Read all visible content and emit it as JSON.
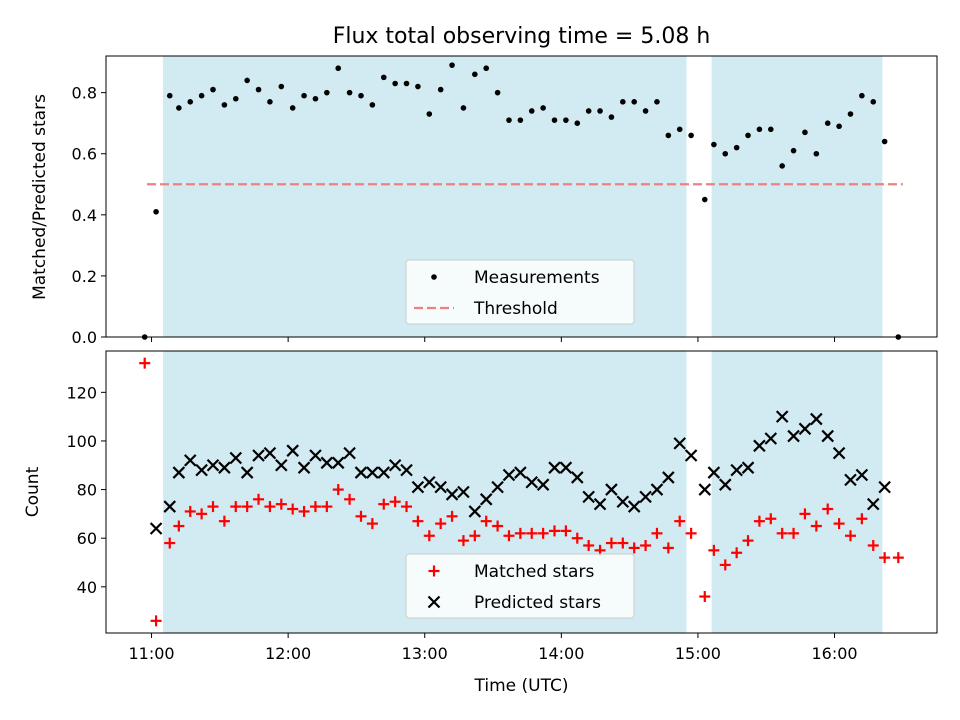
{
  "chart_data": [
    {
      "type": "scatter",
      "title": "Flux total observing time = 5.08 h",
      "xlabel": "",
      "ylabel": "Matched/Predicted stars",
      "xlim": [
        "10:40",
        "16:45"
      ],
      "ylim": [
        0,
        0.92
      ],
      "yticks": [
        0,
        0.2,
        0.4,
        0.6,
        0.8
      ],
      "ytick_labels": [
        "0.0",
        "0.2",
        "0.4",
        "0.6",
        "0.8"
      ],
      "xticks": [
        "11:00",
        "12:00",
        "13:00",
        "14:00",
        "15:00",
        "16:00"
      ],
      "show_xtick_labels": false,
      "shaded_intervals": [
        [
          "11:05",
          "14:55"
        ],
        [
          "15:06",
          "16:21"
        ]
      ],
      "shade_color": "#add8e6",
      "threshold": {
        "label": "Threshold",
        "value": 0.5,
        "x_range": [
          "10:58",
          "16:30"
        ],
        "color": "#f08080"
      },
      "legend": {
        "placement": "lower-center",
        "entries": [
          "Measurements",
          "Threshold"
        ]
      },
      "series": [
        {
          "name": "Measurements",
          "color": "#000000",
          "points": [
            [
              "10:57",
              0.0
            ],
            [
              "11:02",
              0.41
            ],
            [
              "11:08",
              0.79
            ],
            [
              "11:12",
              0.75
            ],
            [
              "11:17",
              0.77
            ],
            [
              "11:22",
              0.79
            ],
            [
              "11:27",
              0.81
            ],
            [
              "11:32",
              0.76
            ],
            [
              "11:37",
              0.78
            ],
            [
              "11:42",
              0.84
            ],
            [
              "11:47",
              0.81
            ],
            [
              "11:52",
              0.77
            ],
            [
              "11:57",
              0.82
            ],
            [
              "12:02",
              0.75
            ],
            [
              "12:07",
              0.79
            ],
            [
              "12:12",
              0.78
            ],
            [
              "12:17",
              0.8
            ],
            [
              "12:22",
              0.88
            ],
            [
              "12:27",
              0.8
            ],
            [
              "12:32",
              0.79
            ],
            [
              "12:37",
              0.76
            ],
            [
              "12:42",
              0.85
            ],
            [
              "12:47",
              0.83
            ],
            [
              "12:52",
              0.83
            ],
            [
              "12:57",
              0.82
            ],
            [
              "13:02",
              0.73
            ],
            [
              "13:07",
              0.81
            ],
            [
              "13:12",
              0.89
            ],
            [
              "13:17",
              0.75
            ],
            [
              "13:22",
              0.86
            ],
            [
              "13:27",
              0.88
            ],
            [
              "13:32",
              0.8
            ],
            [
              "13:37",
              0.71
            ],
            [
              "13:42",
              0.71
            ],
            [
              "13:47",
              0.74
            ],
            [
              "13:52",
              0.75
            ],
            [
              "13:57",
              0.71
            ],
            [
              "14:02",
              0.71
            ],
            [
              "14:07",
              0.7
            ],
            [
              "14:12",
              0.74
            ],
            [
              "14:17",
              0.74
            ],
            [
              "14:22",
              0.72
            ],
            [
              "14:27",
              0.77
            ],
            [
              "14:32",
              0.77
            ],
            [
              "14:37",
              0.74
            ],
            [
              "14:42",
              0.77
            ],
            [
              "14:47",
              0.66
            ],
            [
              "14:52",
              0.68
            ],
            [
              "14:57",
              0.66
            ],
            [
              "15:03",
              0.45
            ],
            [
              "15:07",
              0.63
            ],
            [
              "15:12",
              0.6
            ],
            [
              "15:17",
              0.62
            ],
            [
              "15:22",
              0.66
            ],
            [
              "15:27",
              0.68
            ],
            [
              "15:32",
              0.68
            ],
            [
              "15:37",
              0.56
            ],
            [
              "15:42",
              0.61
            ],
            [
              "15:47",
              0.67
            ],
            [
              "15:52",
              0.6
            ],
            [
              "15:57",
              0.7
            ],
            [
              "16:02",
              0.69
            ],
            [
              "16:07",
              0.73
            ],
            [
              "16:12",
              0.79
            ],
            [
              "16:17",
              0.77
            ],
            [
              "16:22",
              0.64
            ],
            [
              "16:28",
              0.0
            ]
          ]
        }
      ]
    },
    {
      "type": "scatter",
      "title": "",
      "xlabel": "Time (UTC)",
      "ylabel": "Count",
      "xlim": [
        "10:40",
        "16:45"
      ],
      "ylim": [
        21,
        137
      ],
      "yticks": [
        40,
        60,
        80,
        100,
        120
      ],
      "xticks": [
        "11:00",
        "12:00",
        "13:00",
        "14:00",
        "15:00",
        "16:00"
      ],
      "shaded_intervals": [
        [
          "11:05",
          "14:55"
        ],
        [
          "15:06",
          "16:21"
        ]
      ],
      "shade_color": "#add8e6",
      "legend": {
        "placement": "lower-center",
        "entries": [
          "Matched stars",
          "Predicted stars"
        ]
      },
      "series": [
        {
          "name": "Matched stars",
          "marker": "plus",
          "color": "#ff0000",
          "points": [
            [
              "10:57",
              132
            ],
            [
              "11:02",
              26
            ],
            [
              "11:08",
              58
            ],
            [
              "11:12",
              65
            ],
            [
              "11:17",
              71
            ],
            [
              "11:22",
              70
            ],
            [
              "11:27",
              73
            ],
            [
              "11:32",
              67
            ],
            [
              "11:37",
              73
            ],
            [
              "11:42",
              73
            ],
            [
              "11:47",
              76
            ],
            [
              "11:52",
              73
            ],
            [
              "11:57",
              74
            ],
            [
              "12:02",
              72
            ],
            [
              "12:07",
              71
            ],
            [
              "12:12",
              73
            ],
            [
              "12:17",
              73
            ],
            [
              "12:22",
              80
            ],
            [
              "12:27",
              76
            ],
            [
              "12:32",
              69
            ],
            [
              "12:37",
              66
            ],
            [
              "12:42",
              74
            ],
            [
              "12:47",
              75
            ],
            [
              "12:52",
              73
            ],
            [
              "12:57",
              67
            ],
            [
              "13:02",
              61
            ],
            [
              "13:07",
              66
            ],
            [
              "13:12",
              69
            ],
            [
              "13:17",
              59
            ],
            [
              "13:22",
              61
            ],
            [
              "13:27",
              67
            ],
            [
              "13:32",
              65
            ],
            [
              "13:37",
              61
            ],
            [
              "13:42",
              62
            ],
            [
              "13:47",
              62
            ],
            [
              "13:52",
              62
            ],
            [
              "13:57",
              63
            ],
            [
              "14:02",
              63
            ],
            [
              "14:07",
              60
            ],
            [
              "14:12",
              57
            ],
            [
              "14:17",
              55
            ],
            [
              "14:22",
              58
            ],
            [
              "14:27",
              58
            ],
            [
              "14:32",
              56
            ],
            [
              "14:37",
              57
            ],
            [
              "14:42",
              62
            ],
            [
              "14:47",
              56
            ],
            [
              "14:52",
              67
            ],
            [
              "14:57",
              62
            ],
            [
              "15:03",
              36
            ],
            [
              "15:07",
              55
            ],
            [
              "15:12",
              49
            ],
            [
              "15:17",
              54
            ],
            [
              "15:22",
              59
            ],
            [
              "15:27",
              67
            ],
            [
              "15:32",
              68
            ],
            [
              "15:37",
              62
            ],
            [
              "15:42",
              62
            ],
            [
              "15:47",
              70
            ],
            [
              "15:52",
              65
            ],
            [
              "15:57",
              72
            ],
            [
              "16:02",
              66
            ],
            [
              "16:07",
              61
            ],
            [
              "16:12",
              68
            ],
            [
              "16:17",
              57
            ],
            [
              "16:22",
              52
            ],
            [
              "16:28",
              52
            ]
          ]
        },
        {
          "name": "Predicted stars",
          "marker": "x",
          "color": "#000000",
          "points": [
            [
              "11:02",
              64
            ],
            [
              "11:08",
              73
            ],
            [
              "11:12",
              87
            ],
            [
              "11:17",
              92
            ],
            [
              "11:22",
              88
            ],
            [
              "11:27",
              90
            ],
            [
              "11:32",
              89
            ],
            [
              "11:37",
              93
            ],
            [
              "11:42",
              87
            ],
            [
              "11:47",
              94
            ],
            [
              "11:52",
              95
            ],
            [
              "11:57",
              90
            ],
            [
              "12:02",
              96
            ],
            [
              "12:07",
              89
            ],
            [
              "12:12",
              94
            ],
            [
              "12:17",
              91
            ],
            [
              "12:22",
              91
            ],
            [
              "12:27",
              95
            ],
            [
              "12:32",
              87
            ],
            [
              "12:37",
              87
            ],
            [
              "12:42",
              87
            ],
            [
              "12:47",
              90
            ],
            [
              "12:52",
              88
            ],
            [
              "12:57",
              81
            ],
            [
              "13:02",
              83
            ],
            [
              "13:07",
              81
            ],
            [
              "13:12",
              78
            ],
            [
              "13:17",
              79
            ],
            [
              "13:22",
              71
            ],
            [
              "13:27",
              76
            ],
            [
              "13:32",
              81
            ],
            [
              "13:37",
              86
            ],
            [
              "13:42",
              87
            ],
            [
              "13:47",
              83
            ],
            [
              "13:52",
              82
            ],
            [
              "13:57",
              89
            ],
            [
              "14:02",
              89
            ],
            [
              "14:07",
              85
            ],
            [
              "14:12",
              77
            ],
            [
              "14:17",
              74
            ],
            [
              "14:22",
              80
            ],
            [
              "14:27",
              75
            ],
            [
              "14:32",
              73
            ],
            [
              "14:37",
              77
            ],
            [
              "14:42",
              80
            ],
            [
              "14:47",
              85
            ],
            [
              "14:52",
              99
            ],
            [
              "14:57",
              94
            ],
            [
              "15:03",
              80
            ],
            [
              "15:07",
              87
            ],
            [
              "15:12",
              82
            ],
            [
              "15:17",
              88
            ],
            [
              "15:22",
              89
            ],
            [
              "15:27",
              98
            ],
            [
              "15:32",
              101
            ],
            [
              "15:37",
              110
            ],
            [
              "15:42",
              102
            ],
            [
              "15:47",
              105
            ],
            [
              "15:52",
              109
            ],
            [
              "15:57",
              102
            ],
            [
              "16:02",
              95
            ],
            [
              "16:07",
              84
            ],
            [
              "16:12",
              86
            ],
            [
              "16:17",
              74
            ],
            [
              "16:22",
              81
            ]
          ]
        }
      ]
    }
  ]
}
